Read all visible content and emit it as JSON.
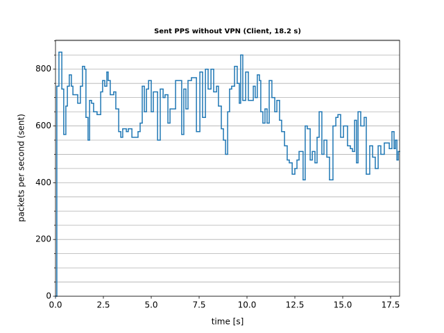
{
  "chart_data": {
    "type": "step",
    "title": "Sent PPS without VPN (Client, 18.2 s)",
    "x_label": "time [s]",
    "y_label": "packets per second (sent)",
    "color": "#1f77b4",
    "grid": true,
    "xlim": [
      0,
      17.97
    ],
    "ylim": [
      0,
      902
    ],
    "xticks": [
      {
        "value": 0,
        "label": "0.0"
      },
      2.5,
      {
        "value": 5,
        "label": "5.0"
      },
      7.5,
      {
        "value": 10,
        "label": "10.0"
      },
      12.5,
      {
        "value": 15,
        "label": "15.0"
      },
      17.5
    ],
    "yticks": [
      0,
      200,
      400,
      600,
      800
    ],
    "y_minor_ticks": [
      50,
      100,
      150,
      250,
      300,
      350,
      450,
      500,
      550,
      650,
      700,
      750,
      850,
      900
    ],
    "x": [
      0.0,
      0.07,
      0.18,
      0.33,
      0.43,
      0.54,
      0.62,
      0.72,
      0.83,
      0.91,
      1.16,
      1.3,
      1.41,
      1.52,
      1.59,
      1.7,
      1.78,
      1.88,
      1.99,
      2.17,
      2.36,
      2.46,
      2.57,
      2.68,
      2.75,
      2.86,
      3.04,
      3.15,
      3.3,
      3.41,
      3.51,
      3.7,
      3.8,
      3.99,
      4.31,
      4.42,
      4.53,
      4.64,
      4.75,
      4.86,
      5.0,
      5.11,
      5.33,
      5.47,
      5.62,
      5.72,
      5.87,
      5.98,
      6.27,
      6.59,
      6.7,
      6.81,
      6.92,
      7.1,
      7.36,
      7.54,
      7.68,
      7.83,
      7.97,
      8.12,
      8.26,
      8.41,
      8.51,
      8.66,
      8.77,
      8.88,
      8.99,
      9.09,
      9.2,
      9.35,
      9.49,
      9.6,
      9.67,
      9.78,
      9.93,
      10.07,
      10.33,
      10.43,
      10.54,
      10.65,
      10.72,
      10.83,
      10.94,
      11.05,
      11.16,
      11.3,
      11.45,
      11.56,
      11.7,
      11.81,
      11.96,
      12.1,
      12.21,
      12.36,
      12.5,
      12.61,
      12.72,
      12.93,
      13.04,
      13.15,
      13.3,
      13.41,
      13.55,
      13.66,
      13.77,
      13.91,
      14.02,
      14.17,
      14.31,
      14.49,
      14.64,
      14.75,
      14.89,
      15.04,
      15.25,
      15.4,
      15.51,
      15.62,
      15.72,
      15.8,
      15.94,
      16.12,
      16.23,
      16.41,
      16.56,
      16.7,
      16.85,
      16.99,
      17.17,
      17.43,
      17.57,
      17.68,
      17.75,
      17.83,
      17.9
    ],
    "values": [
      0,
      740,
      860,
      730,
      570,
      670,
      740,
      780,
      740,
      710,
      680,
      740,
      810,
      800,
      630,
      550,
      690,
      680,
      650,
      640,
      720,
      760,
      740,
      790,
      760,
      710,
      720,
      660,
      580,
      560,
      590,
      580,
      590,
      560,
      580,
      610,
      740,
      650,
      730,
      760,
      650,
      720,
      550,
      730,
      700,
      710,
      610,
      660,
      760,
      570,
      730,
      660,
      760,
      770,
      580,
      790,
      630,
      800,
      730,
      800,
      720,
      740,
      670,
      590,
      550,
      500,
      650,
      730,
      740,
      810,
      750,
      680,
      850,
      690,
      790,
      690,
      740,
      700,
      780,
      760,
      650,
      610,
      660,
      610,
      760,
      700,
      650,
      690,
      620,
      580,
      530,
      480,
      470,
      430,
      450,
      480,
      510,
      410,
      600,
      590,
      480,
      510,
      470,
      560,
      650,
      500,
      550,
      490,
      410,
      600,
      630,
      640,
      560,
      600,
      530,
      520,
      510,
      620,
      470,
      650,
      600,
      630,
      430,
      530,
      490,
      450,
      530,
      500,
      540,
      520,
      580,
      520,
      550,
      480,
      510
    ]
  }
}
